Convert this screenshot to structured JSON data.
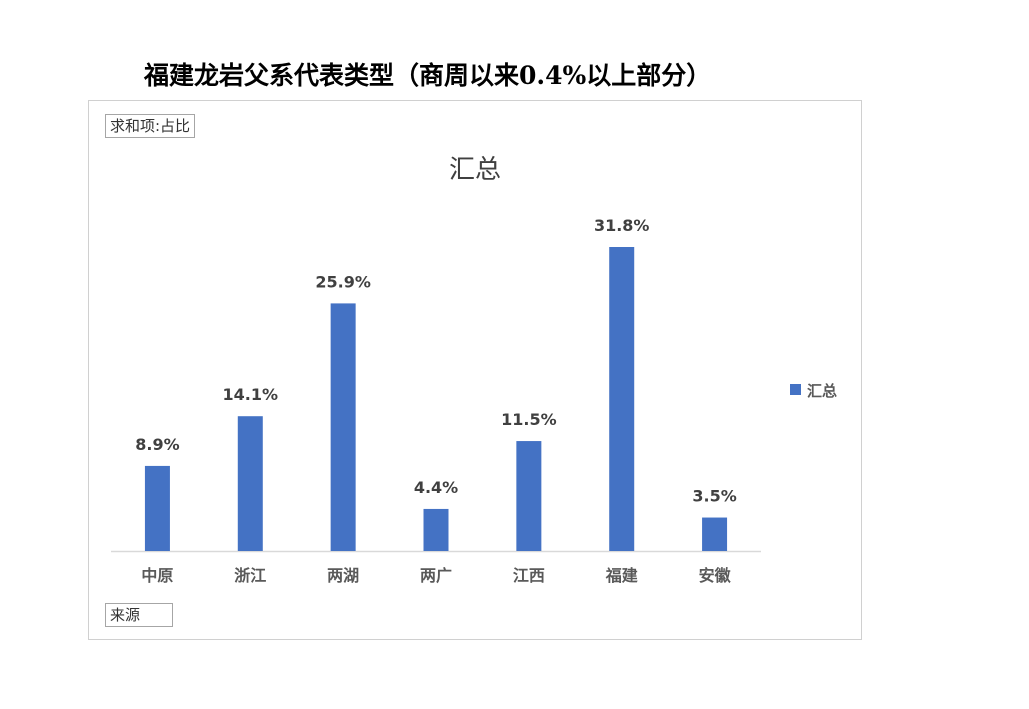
{
  "page_title": "福建龙岩父系代表类型（商周以来0.4%以上部分）",
  "pivot": {
    "value_field_label": "求和项:占比",
    "row_field_label": "来源"
  },
  "colors": {
    "bar": "#4472c4",
    "axis": "#d9d9d9"
  },
  "chart_data": {
    "type": "bar",
    "title": "汇总",
    "categories": [
      "中原",
      "浙江",
      "两湖",
      "两广",
      "江西",
      "福建",
      "安徽"
    ],
    "series": [
      {
        "name": "汇总",
        "values": [
          8.9,
          14.1,
          25.9,
          4.4,
          11.5,
          31.8,
          3.5
        ]
      }
    ],
    "data_labels": [
      "8.9%",
      "14.1%",
      "25.9%",
      "4.4%",
      "11.5%",
      "31.8%",
      "3.5%"
    ],
    "ylim": [
      0,
      32
    ],
    "grid": false,
    "legend": "right"
  }
}
